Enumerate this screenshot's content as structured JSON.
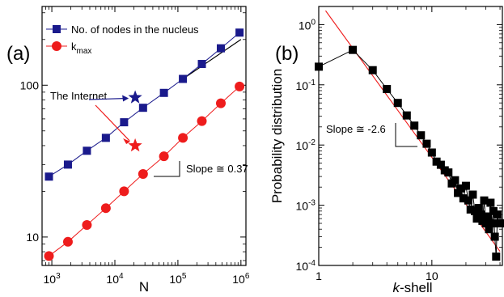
{
  "chart_data": [
    {
      "panel_label": "(a)",
      "type": "line",
      "xlabel": "N",
      "ylabel": "",
      "xscale": "log",
      "yscale": "log",
      "xlim": [
        700,
        1200000
      ],
      "ylim": [
        6.5,
        330
      ],
      "xticks": [
        {
          "value": 1000,
          "base": "10",
          "exp": "3"
        },
        {
          "value": 10000,
          "base": "10",
          "exp": "4"
        },
        {
          "value": 100000,
          "base": "10",
          "exp": "5"
        },
        {
          "value": 1000000,
          "base": "10",
          "exp": "6"
        }
      ],
      "yticks": [
        {
          "value": 10,
          "label": "10"
        },
        {
          "value": 100,
          "label": "100"
        }
      ],
      "legend_position": "top-left",
      "series": [
        {
          "name": "No. of nodes in the nucleus",
          "marker": "square",
          "color": "#1a1a8c",
          "x": [
            900,
            1800,
            3600,
            7200,
            14000,
            28000,
            60000,
            120000,
            240000,
            480000,
            950000
          ],
          "y": [
            25,
            30,
            37,
            45,
            57,
            71,
            89,
            110,
            138,
            175,
            222
          ]
        },
        {
          "name": "k",
          "name_sub": "max",
          "marker": "circle",
          "color": "#ee1c1c",
          "x": [
            900,
            1800,
            3600,
            7200,
            14000,
            28000,
            60000,
            120000,
            240000,
            480000,
            950000
          ],
          "y": [
            7.5,
            9.3,
            12,
            15.5,
            20,
            26,
            34,
            45,
            58,
            76,
            98
          ]
        }
      ],
      "stars": [
        {
          "color": "#1a1a8c",
          "x": 21000,
          "y": 83
        },
        {
          "color": "#ee1c1c",
          "x": 21000,
          "y": 40
        }
      ],
      "reference_line": {
        "x": [
          120000,
          1000000
        ],
        "y": [
          110,
          200
        ]
      },
      "annotations": {
        "internet_label": "The Internet",
        "slope_label": "Slope ≅ 0.37"
      }
    },
    {
      "panel_label": "(b)",
      "type": "line",
      "xlabel_italic": "k",
      "xlabel_rest": "-shell",
      "ylabel": "Probability distribution",
      "xscale": "log",
      "yscale": "log",
      "xlim": [
        1,
        42
      ],
      "ylim": [
        0.0001,
        2
      ],
      "xticks": [
        {
          "value": 1,
          "label": "1"
        },
        {
          "value": 10,
          "label": "10"
        }
      ],
      "yticks": [
        {
          "value": 1,
          "base": "10",
          "exp": "0"
        },
        {
          "value": 0.1,
          "base": "10",
          "exp": "-1"
        },
        {
          "value": 0.01,
          "base": "10",
          "exp": "-2"
        },
        {
          "value": 0.001,
          "base": "10",
          "exp": "-3"
        },
        {
          "value": 0.0001,
          "base": "10",
          "exp": "-4"
        }
      ],
      "series": [
        {
          "name": "",
          "marker": "square",
          "color": "#000000",
          "x": [
            1,
            2,
            3,
            4,
            5,
            6,
            7,
            8,
            9,
            10,
            11,
            12,
            13,
            14,
            15,
            16,
            17,
            18,
            19,
            20,
            21,
            22,
            23,
            24,
            25,
            26,
            27,
            28,
            29,
            30,
            31,
            32,
            33,
            34,
            35,
            36,
            37,
            38,
            39,
            40
          ],
          "y": [
            0.2,
            0.38,
            0.175,
            0.085,
            0.05,
            0.031,
            0.021,
            0.0145,
            0.0105,
            0.0075,
            0.0053,
            0.0047,
            0.0038,
            0.0035,
            0.0023,
            0.0026,
            0.0016,
            0.0019,
            0.0013,
            0.0021,
            0.0012,
            0.00085,
            0.0015,
            0.0008,
            0.0006,
            0.0009,
            0.0007,
            0.00055,
            0.0012,
            0.0005,
            0.00065,
            0.0004,
            0.0011,
            0.0005,
            0.0008,
            0.0003,
            0.00014,
            0.0007,
            0.0005,
            0.0005
          ]
        }
      ],
      "fit_line": {
        "color": "#ee1c1c",
        "x": [
          1.15,
          40
        ],
        "y": [
          1.7,
          0.0001712
        ]
      },
      "annotations": {
        "slope_label": "Slope ≅ -2.6"
      }
    }
  ]
}
